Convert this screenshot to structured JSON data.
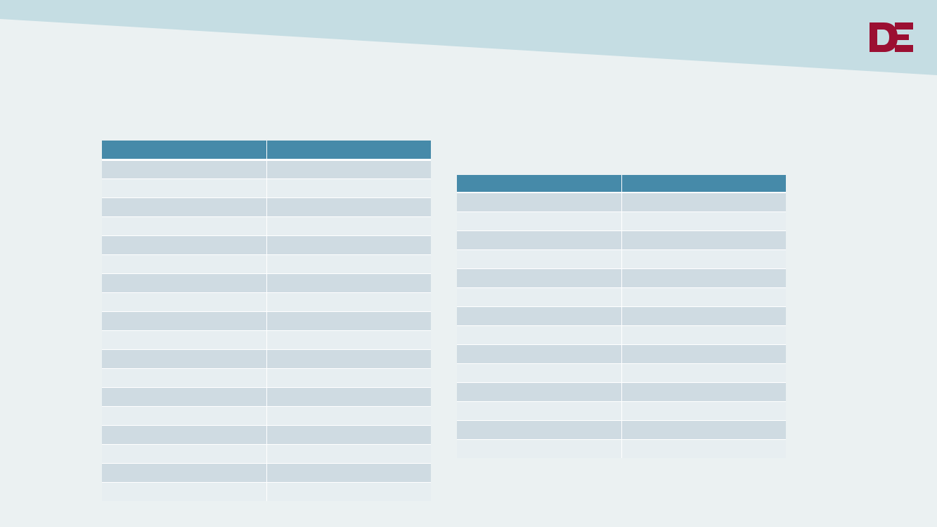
{
  "theme": {
    "background": "#EBF1F2",
    "banner_color": "#C5DDE3",
    "header_color": "#468AA9",
    "row_odd_color": "#CFDBE2",
    "row_even_color": "#E7EEF1",
    "logo_color": "#9B0F32"
  },
  "logo": {
    "text": "DE",
    "icon": "de-logo-icon"
  },
  "table_left": {
    "headers": [
      "",
      ""
    ],
    "rows": [
      [
        "",
        ""
      ],
      [
        "",
        ""
      ],
      [
        "",
        ""
      ],
      [
        "",
        ""
      ],
      [
        "",
        ""
      ],
      [
        "",
        ""
      ],
      [
        "",
        ""
      ],
      [
        "",
        ""
      ],
      [
        "",
        ""
      ],
      [
        "",
        ""
      ],
      [
        "",
        ""
      ],
      [
        "",
        ""
      ],
      [
        "",
        ""
      ],
      [
        "",
        ""
      ],
      [
        "",
        ""
      ],
      [
        "",
        ""
      ],
      [
        "",
        ""
      ],
      [
        "",
        ""
      ]
    ]
  },
  "table_right": {
    "headers": [
      "",
      ""
    ],
    "rows": [
      [
        "",
        ""
      ],
      [
        "",
        ""
      ],
      [
        "",
        ""
      ],
      [
        "",
        ""
      ],
      [
        "",
        ""
      ],
      [
        "",
        ""
      ],
      [
        "",
        ""
      ],
      [
        "",
        ""
      ],
      [
        "",
        ""
      ],
      [
        "",
        ""
      ],
      [
        "",
        ""
      ],
      [
        "",
        ""
      ],
      [
        "",
        ""
      ],
      [
        "",
        ""
      ]
    ]
  }
}
